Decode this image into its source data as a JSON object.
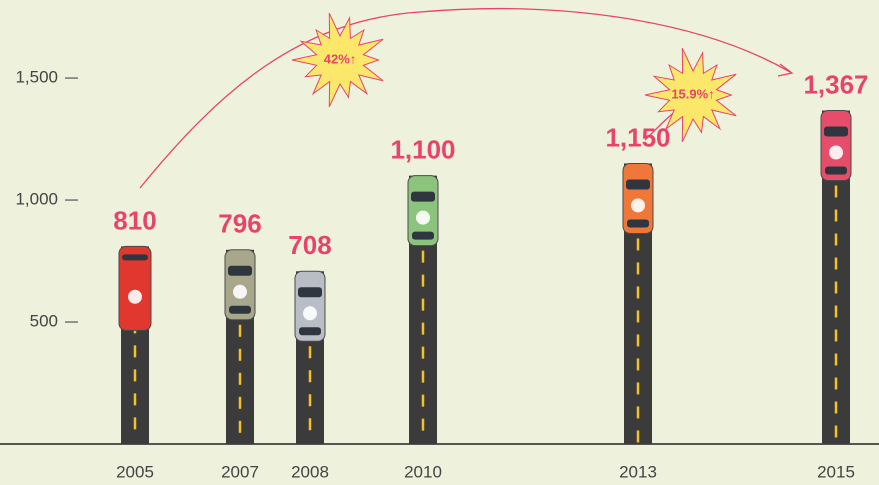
{
  "chart_data": {
    "type": "bar",
    "categories": [
      "2005",
      "2007",
      "2008",
      "2010",
      "2013",
      "2015"
    ],
    "values": [
      810,
      796,
      708,
      1100,
      1150,
      1367
    ],
    "value_labels": [
      "810",
      "796",
      "708",
      "1,100",
      "1,150",
      "1,367"
    ],
    "colors": [
      "#e0372f",
      "#a9a78b",
      "#b9bdc5",
      "#8dc47d",
      "#f0773a",
      "#e64d6b"
    ],
    "ylim": [
      0,
      1820
    ],
    "yticks": [
      {
        "value": 500,
        "label": "500"
      },
      {
        "value": 1000,
        "label": "1,000"
      },
      {
        "value": 1500,
        "label": "1,500"
      }
    ],
    "annotations": [
      "42%↑",
      "15.9%↑"
    ]
  }
}
